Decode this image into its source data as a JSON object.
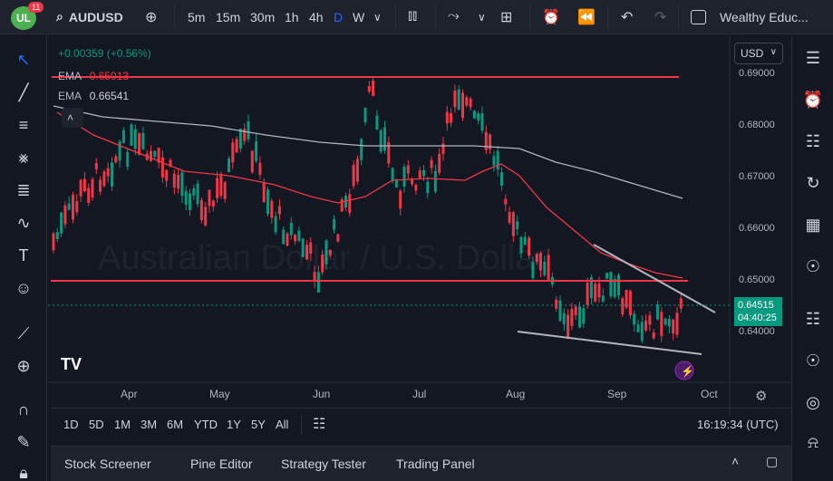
{
  "header": {
    "logo_text": "UL",
    "logo_badge": "11",
    "symbol": "AUDUSD",
    "timeframes": [
      "5m",
      "15m",
      "30m",
      "1h",
      "4h",
      "D",
      "W"
    ],
    "active_timeframe": "D",
    "account": "Wealthy Educ..."
  },
  "legend": {
    "change": "+0.00359 (+0.56%)",
    "ema1_label": "EMA",
    "ema1_value": "0.65013",
    "ema2_label": "EMA",
    "ema2_value": "0.66541"
  },
  "watermark": "Australian Dollar / U.S. Dollar",
  "price_axis": {
    "currency": "USD",
    "labels": [
      "0.69000",
      "0.68000",
      "0.67000",
      "0.66000",
      "0.65000",
      "0.64000"
    ],
    "current_price": "0.64515",
    "countdown": "04:40:25"
  },
  "time_axis": {
    "labels": [
      "Apr",
      "May",
      "Jun",
      "Jul",
      "Aug",
      "Sep",
      "Oct"
    ]
  },
  "bottom_bar": {
    "ranges": [
      "1D",
      "5D",
      "1M",
      "3M",
      "6M",
      "YTD",
      "1Y",
      "5Y",
      "All"
    ],
    "clock": "16:19:34 (UTC)"
  },
  "panels": {
    "tabs": [
      "Stock Screener",
      "Pine Editor",
      "Strategy Tester",
      "Trading Panel"
    ]
  },
  "colors": {
    "up": "#089981",
    "down": "#f23645",
    "ema_fast": "#f23645",
    "ema_slow": "#b2b5be",
    "resistance": "#f23645",
    "accent": "#2962ff"
  }
}
